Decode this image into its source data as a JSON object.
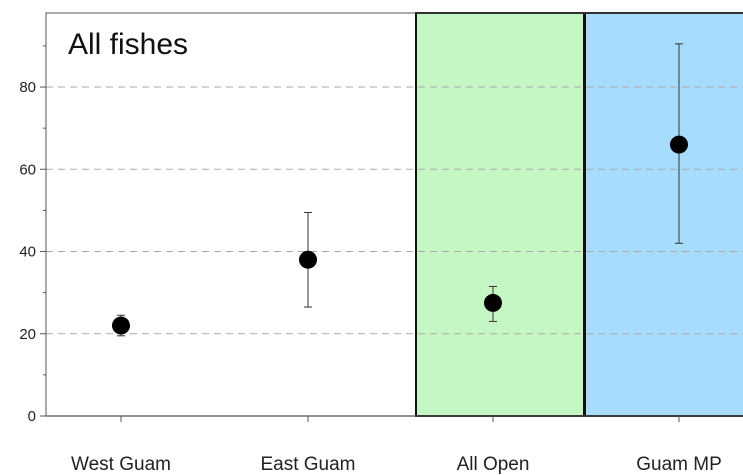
{
  "chart_data": {
    "type": "scatter",
    "title": "All fishes",
    "xlabel": "",
    "ylabel": "",
    "categories": [
      "West Guam",
      "East Guam",
      "All Open",
      "Guam MP"
    ],
    "y_ticks": [
      "0",
      "20",
      "40",
      "60",
      "80"
    ],
    "ylim": [
      0,
      98
    ],
    "grid": true,
    "points": [
      {
        "category": "West Guam",
        "value": 22,
        "low": 19.5,
        "high": 24.5
      },
      {
        "category": "East Guam",
        "value": 38,
        "low": 26.5,
        "high": 49.5
      },
      {
        "category": "All Open",
        "value": 27.5,
        "low": 23,
        "high": 31.5
      },
      {
        "category": "Guam MP",
        "value": 66,
        "low": 42,
        "high": 90.5
      }
    ],
    "highlight_regions": [
      {
        "category": "All Open",
        "color": "#c4f7c4"
      },
      {
        "category": "Guam MP",
        "color": "#a8dcfc"
      }
    ],
    "colors": {
      "marker": "#000000",
      "grid": "#aaaaaa",
      "axis": "#555555"
    }
  }
}
